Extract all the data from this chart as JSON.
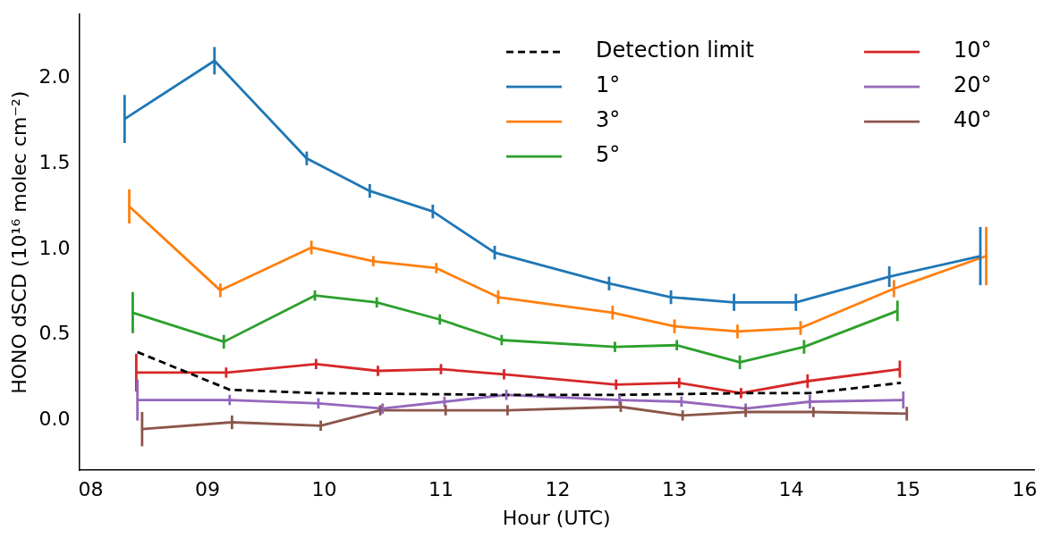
{
  "chart_data": {
    "type": "line",
    "xlabel": "Hour (UTC)",
    "ylabel": "HONO dSCD (10¹⁶ molec cm⁻²)",
    "xlim": [
      7.9,
      16.08
    ],
    "xticks": [
      {
        "value": 8,
        "label": "08"
      },
      {
        "value": 9,
        "label": "09"
      },
      10,
      11,
      12,
      13,
      14,
      15,
      16
    ],
    "ylim": [
      -0.29,
      2.37
    ],
    "yticks": [
      {
        "value": 0,
        "label": "0.0"
      },
      0.5,
      {
        "value": 1,
        "label": "1.0"
      },
      1.5,
      {
        "value": 2,
        "label": "2.0"
      }
    ],
    "grid": false,
    "legend": "top right",
    "marker": "none",
    "series": [
      {
        "name": "Detection limit",
        "color": "#000000",
        "line_style": "dashed",
        "x": [
          8.4,
          9.19,
          9.95,
          11.57,
          12.53,
          13.6,
          14.16,
          14.94
        ],
        "values": [
          0.4,
          0.18,
          0.16,
          0.15,
          0.15,
          0.16,
          0.16,
          0.22
        ]
      },
      {
        "name": "1°",
        "color": "#1f77b4",
        "x": [
          8.29,
          9.06,
          9.85,
          10.39,
          10.93,
          11.46,
          12.44,
          12.97,
          13.51,
          14.04,
          14.84,
          15.62
        ],
        "values": [
          1.76,
          2.1,
          1.53,
          1.34,
          1.22,
          0.98,
          0.8,
          0.72,
          0.69,
          0.69,
          0.84,
          0.96
        ],
        "errors": [
          0.14,
          0.08,
          0.04,
          0.04,
          0.04,
          0.04,
          0.04,
          0.04,
          0.05,
          0.05,
          0.06,
          0.17
        ]
      },
      {
        "name": "3°",
        "color": "#ff7f0e",
        "x": [
          8.33,
          9.11,
          9.89,
          10.42,
          10.96,
          11.49,
          12.47,
          13.0,
          13.54,
          14.08,
          14.88,
          15.67
        ],
        "values": [
          1.25,
          0.76,
          1.01,
          0.93,
          0.89,
          0.72,
          0.63,
          0.55,
          0.52,
          0.54,
          0.77,
          0.96
        ],
        "errors": [
          0.1,
          0.04,
          0.04,
          0.03,
          0.03,
          0.04,
          0.04,
          0.04,
          0.04,
          0.04,
          0.05,
          0.17
        ]
      },
      {
        "name": "5°",
        "color": "#2ca02c",
        "x": [
          8.36,
          9.14,
          9.92,
          10.45,
          10.99,
          11.52,
          12.49,
          13.02,
          13.56,
          14.11,
          14.91
        ],
        "values": [
          0.63,
          0.46,
          0.73,
          0.69,
          0.59,
          0.47,
          0.43,
          0.44,
          0.34,
          0.43,
          0.64
        ],
        "errors": [
          0.12,
          0.04,
          0.03,
          0.03,
          0.03,
          0.03,
          0.03,
          0.03,
          0.04,
          0.04,
          0.06
        ]
      },
      {
        "name": "10°",
        "color": "#d62728",
        "x": [
          8.39,
          9.16,
          9.93,
          10.46,
          11.0,
          11.54,
          12.5,
          13.04,
          13.57,
          14.14,
          14.93
        ],
        "values": [
          0.28,
          0.28,
          0.33,
          0.29,
          0.3,
          0.27,
          0.21,
          0.22,
          0.16,
          0.23,
          0.3
        ],
        "errors": [
          0.11,
          0.03,
          0.03,
          0.03,
          0.03,
          0.03,
          0.03,
          0.03,
          0.03,
          0.04,
          0.05
        ]
      },
      {
        "name": "20°",
        "color": "#9467bd",
        "x": [
          8.4,
          9.19,
          9.95,
          10.5,
          11.03,
          11.56,
          12.53,
          13.06,
          13.61,
          14.16,
          14.96
        ],
        "values": [
          0.12,
          0.12,
          0.1,
          0.07,
          0.11,
          0.15,
          0.12,
          0.11,
          0.07,
          0.11,
          0.12
        ],
        "errors": [
          0.12,
          0.03,
          0.03,
          0.03,
          0.03,
          0.03,
          0.03,
          0.03,
          0.03,
          0.04,
          0.05
        ]
      },
      {
        "name": "40°",
        "color": "#8c564b",
        "x": [
          8.44,
          9.21,
          9.97,
          10.48,
          11.04,
          11.57,
          12.54,
          13.07,
          13.61,
          14.19,
          14.99
        ],
        "values": [
          -0.05,
          -0.01,
          -0.03,
          0.06,
          0.06,
          0.06,
          0.08,
          0.03,
          0.05,
          0.05,
          0.04
        ],
        "errors": [
          0.1,
          0.04,
          0.03,
          0.03,
          0.03,
          0.03,
          0.03,
          0.03,
          0.03,
          0.03,
          0.04
        ]
      }
    ]
  }
}
